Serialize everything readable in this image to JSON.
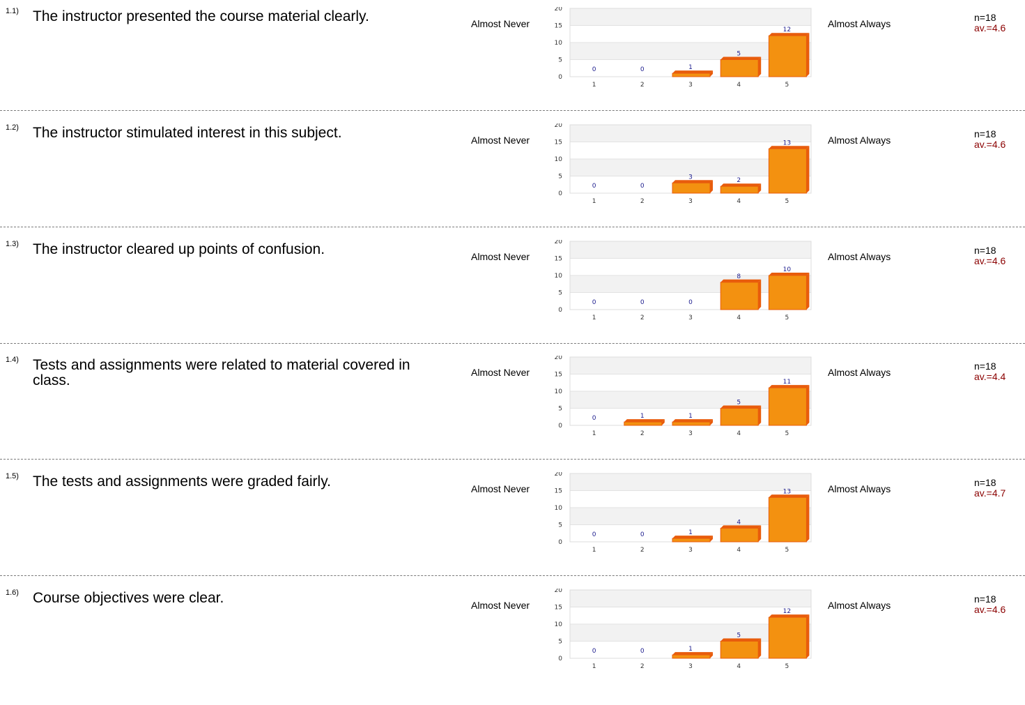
{
  "labels": {
    "left": "Almost Never",
    "right": "Almost Always"
  },
  "questions": [
    {
      "num": "1.1)",
      "text": "The instructor presented the course material clearly.",
      "n": "n=18",
      "avg": "av.=4.6"
    },
    {
      "num": "1.2)",
      "text": "The instructor stimulated interest in this subject.",
      "n": "n=18",
      "avg": "av.=4.6"
    },
    {
      "num": "1.3)",
      "text": "The instructor cleared up points of confusion.",
      "n": "n=18",
      "avg": "av.=4.6"
    },
    {
      "num": "1.4)",
      "text": "Tests and assignments were related to material covered in class.",
      "n": "n=18",
      "avg": "av.=4.4"
    },
    {
      "num": "1.5)",
      "text": "The tests and assignments were graded fairly.",
      "n": "n=18",
      "avg": "av.=4.7"
    },
    {
      "num": "1.6)",
      "text": "Course objectives were clear.",
      "n": "n=18",
      "avg": "av.=4.6"
    }
  ],
  "colors": {
    "bar": "#f39110",
    "bar_edge": "#e85c0c",
    "bar_label": "#1a1a8c",
    "band": "#f2f2f2",
    "avg": "#8b0000"
  },
  "chart_data": [
    {
      "type": "bar",
      "categories": [
        "1",
        "2",
        "3",
        "4",
        "5"
      ],
      "values": [
        0,
        0,
        1,
        5,
        12
      ],
      "yticks": [
        0,
        5,
        10,
        15,
        20
      ],
      "ylim": [
        0,
        20
      ],
      "grid": "alternating bands"
    },
    {
      "type": "bar",
      "categories": [
        "1",
        "2",
        "3",
        "4",
        "5"
      ],
      "values": [
        0,
        0,
        3,
        2,
        13
      ],
      "yticks": [
        0,
        5,
        10,
        15,
        20
      ],
      "ylim": [
        0,
        20
      ],
      "grid": "alternating bands"
    },
    {
      "type": "bar",
      "categories": [
        "1",
        "2",
        "3",
        "4",
        "5"
      ],
      "values": [
        0,
        0,
        0,
        8,
        10
      ],
      "yticks": [
        0,
        5,
        10,
        15,
        20
      ],
      "ylim": [
        0,
        20
      ],
      "grid": "alternating bands"
    },
    {
      "type": "bar",
      "categories": [
        "1",
        "2",
        "3",
        "4",
        "5"
      ],
      "values": [
        0,
        1,
        1,
        5,
        11
      ],
      "yticks": [
        0,
        5,
        10,
        15,
        20
      ],
      "ylim": [
        0,
        20
      ],
      "grid": "alternating bands"
    },
    {
      "type": "bar",
      "categories": [
        "1",
        "2",
        "3",
        "4",
        "5"
      ],
      "values": [
        0,
        0,
        1,
        4,
        13
      ],
      "yticks": [
        0,
        5,
        10,
        15,
        20
      ],
      "ylim": [
        0,
        20
      ],
      "grid": "alternating bands"
    },
    {
      "type": "bar",
      "categories": [
        "1",
        "2",
        "3",
        "4",
        "5"
      ],
      "values": [
        0,
        0,
        1,
        5,
        12
      ],
      "yticks": [
        0,
        5,
        10,
        15,
        20
      ],
      "ylim": [
        0,
        20
      ],
      "grid": "alternating bands"
    }
  ]
}
